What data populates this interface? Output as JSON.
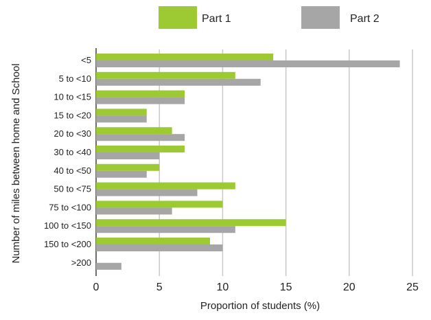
{
  "chart_data": {
    "type": "bar",
    "orientation": "horizontal",
    "categories": [
      "<5",
      "5 to <10",
      "10 to <15",
      "15 to <20",
      "20 to <30",
      "30 to <40",
      "40 to <50",
      "50 to <75",
      "75 to <100",
      "100 to <150",
      "150 to <200",
      ">200"
    ],
    "series": [
      {
        "name": "Part 1",
        "color": "#9dc933",
        "values": [
          14,
          11,
          7,
          4,
          6,
          7,
          5,
          11,
          10,
          15,
          9,
          0
        ]
      },
      {
        "name": "Part 2",
        "color": "#a6a6a6",
        "values": [
          24,
          13,
          7,
          4,
          7,
          5,
          4,
          8,
          6,
          11,
          10,
          2
        ]
      }
    ],
    "title": "",
    "xlabel": "Proportion of students (%)",
    "ylabel": "Number of miles between home and School",
    "xlim": [
      0,
      25
    ],
    "xticks": [
      0,
      5,
      10,
      15,
      20,
      25
    ],
    "grid": "vertical",
    "legend_position": "top"
  }
}
